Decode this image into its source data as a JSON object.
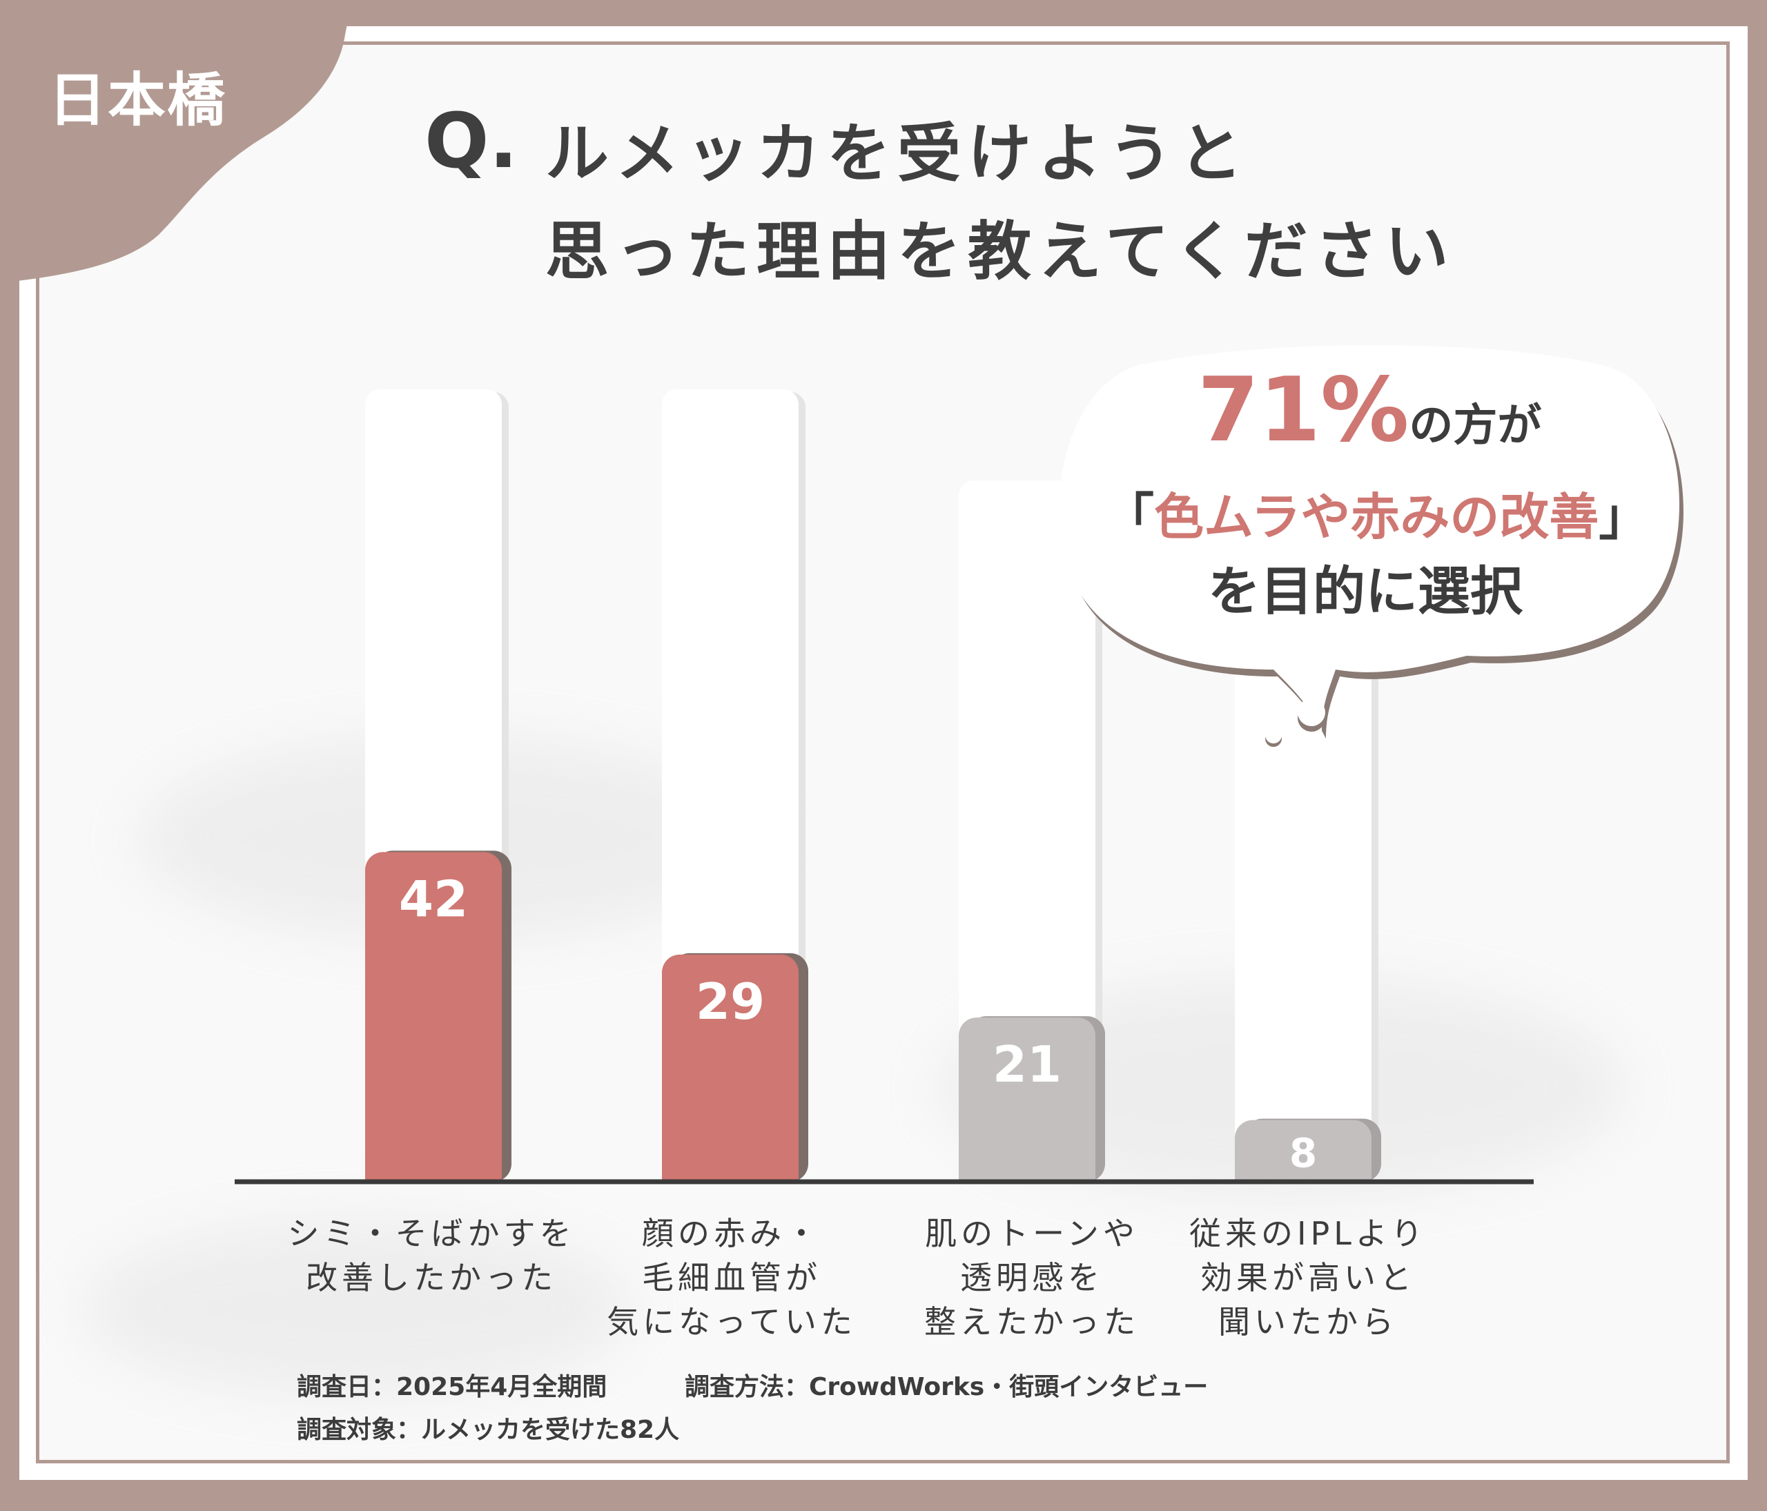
{
  "tag": "日本橋",
  "question": {
    "mark": "Q.",
    "line1": "ルメッカを受けようと",
    "line2": "思った理由を教えてください"
  },
  "callout": {
    "percent": "71%",
    "line1_suffix": "の方が",
    "bracket_open": "「",
    "line2": "色ムラや赤みの改善",
    "bracket_close": "」",
    "line3": "を目的に選択"
  },
  "chart_data": {
    "type": "bar",
    "categories": [
      [
        "シミ・そばかすを",
        "改善したかった"
      ],
      [
        "顔の赤み・",
        "毛細血管が",
        "気になっていた"
      ],
      [
        "肌のトーンや",
        "透明感を",
        "整えたかった"
      ],
      [
        "従来のIPLより",
        "効果が高いと",
        "聞いたから"
      ]
    ],
    "values": [
      42,
      29,
      21,
      8
    ],
    "value_labels": [
      "42",
      "29",
      "21",
      "8"
    ],
    "highlighted": [
      true,
      true,
      false,
      false
    ],
    "colors": {
      "highlight": "#cf7772",
      "normal": "#c2bfbe",
      "axis": "#3a3a3a"
    },
    "ylim": [
      0,
      100
    ]
  },
  "notes": {
    "date": "調査日：2025年4月全期間",
    "method": "調査方法：CrowdWorks・街頭インタビュー",
    "target": "調査対象：ルメッカを受けた82人"
  }
}
